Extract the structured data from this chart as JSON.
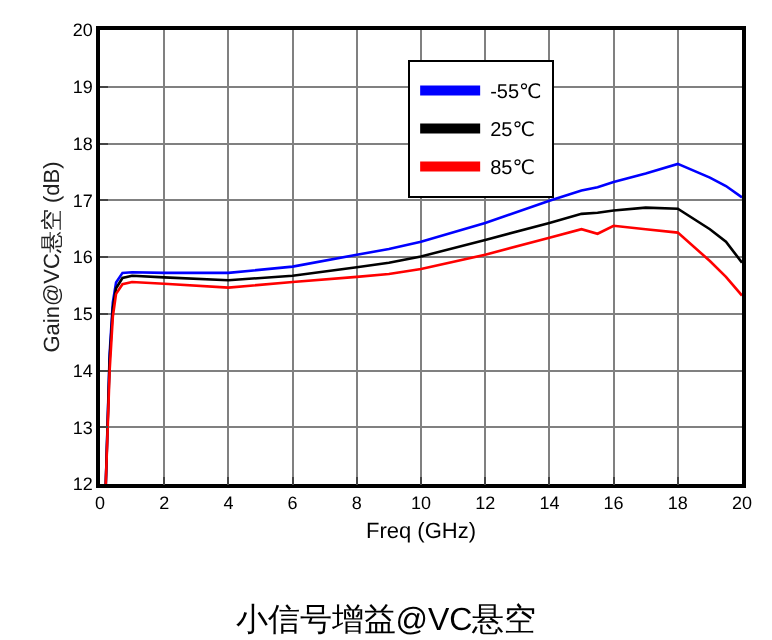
{
  "chart_data": {
    "type": "line",
    "title": "小信号增益@VC悬空",
    "xlabel": "Freq (GHz)",
    "ylabel": "Gain@VC悬空 (dB)",
    "xlim": [
      0,
      20
    ],
    "xticks": [
      0,
      2,
      4,
      6,
      8,
      10,
      12,
      14,
      16,
      18,
      20
    ],
    "ylim": [
      12,
      20
    ],
    "yticks": [
      12,
      13,
      14,
      15,
      16,
      17,
      18,
      19,
      20
    ],
    "grid": true,
    "legend": "top right",
    "marker": "none",
    "line_style": "solid",
    "x": [
      0.18,
      0.3,
      0.4,
      0.5,
      0.7,
      1,
      2,
      4,
      6,
      8,
      9,
      10,
      12,
      14,
      15,
      15.5,
      16,
      17,
      18,
      19,
      19.5,
      20
    ],
    "series": [
      {
        "name": "-55℃",
        "color": "#0000ff",
        "values": [
          12,
          14.3,
          15.2,
          15.55,
          15.72,
          15.73,
          15.72,
          15.72,
          15.83,
          16.04,
          16.14,
          16.27,
          16.6,
          16.99,
          17.17,
          17.23,
          17.32,
          17.47,
          17.64,
          17.4,
          17.25,
          17.05
        ]
      },
      {
        "name": "25℃",
        "color": "#000000",
        "values": [
          12,
          14.2,
          15.1,
          15.45,
          15.63,
          15.67,
          15.64,
          15.59,
          15.67,
          15.82,
          15.9,
          16.01,
          16.3,
          16.6,
          16.76,
          16.78,
          16.82,
          16.87,
          16.85,
          16.49,
          16.27,
          15.9
        ]
      },
      {
        "name": "85℃",
        "color": "#ff0000",
        "values": [
          12,
          14.0,
          14.95,
          15.35,
          15.52,
          15.56,
          15.53,
          15.46,
          15.56,
          15.65,
          15.7,
          15.79,
          16.04,
          16.34,
          16.49,
          16.41,
          16.55,
          16.49,
          16.43,
          15.93,
          15.65,
          15.32
        ]
      }
    ]
  }
}
